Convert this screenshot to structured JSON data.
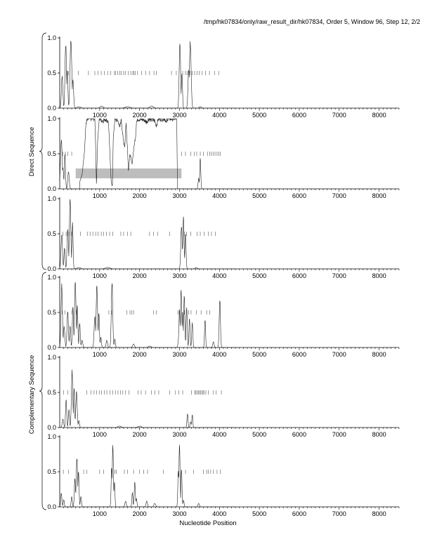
{
  "header": {
    "title": "/tmp/hk07834/only/raw_result_dir/hk07834, Order 5, Window 96, Step 12, 2/2"
  },
  "groups": {
    "direct_label": "Direct Sequence",
    "complementary_label": "Complementary Sequence"
  },
  "xlabel": "Nucleotide Position",
  "chart_data": [
    {
      "type": "line",
      "group": "direct",
      "frame": 1,
      "xlim": [
        0,
        8500
      ],
      "ylim": [
        0,
        1
      ],
      "xticks": [
        1000,
        2000,
        3000,
        4000,
        5000,
        6000,
        7000,
        8000
      ],
      "yticks": [
        "0.0",
        "0.5",
        "1.0"
      ],
      "peaks": [
        [
          60,
          0.45,
          25
        ],
        [
          150,
          0.92,
          25
        ],
        [
          190,
          0.55,
          20
        ],
        [
          280,
          0.98,
          30
        ],
        [
          330,
          0.4,
          25
        ],
        [
          480,
          0.02,
          60
        ],
        [
          1050,
          0.03,
          50
        ],
        [
          1700,
          0.02,
          80
        ],
        [
          2300,
          0.03,
          60
        ],
        [
          3010,
          0.92,
          25
        ],
        [
          3060,
          0.5,
          20
        ],
        [
          3270,
          0.93,
          30
        ],
        [
          3230,
          0.55,
          25
        ],
        [
          3520,
          0.02,
          40
        ]
      ],
      "stop_codons": [
        220,
        470,
        720,
        880,
        960,
        1040,
        1120,
        1200,
        1280,
        1370,
        1400,
        1450,
        1500,
        1540,
        1600,
        1640,
        1720,
        1780,
        1830,
        1860,
        1890,
        1950,
        2050,
        2150,
        2250,
        2360,
        2420,
        2800,
        2920,
        3080,
        3150,
        3190,
        3260,
        3320,
        3380,
        3440,
        3490,
        3560,
        3650,
        3750,
        3880,
        3980
      ],
      "shaded": null
    },
    {
      "type": "line",
      "group": "direct",
      "frame": 2,
      "xlim": [
        0,
        8500
      ],
      "ylim": [
        0,
        1
      ],
      "xticks": [
        1000,
        2000,
        3000,
        4000,
        5000,
        6000,
        7000,
        8000
      ],
      "yticks": [
        "0.0",
        "0.5",
        "1.0"
      ],
      "plateau": [
        [
          500,
          0.1
        ],
        [
          560,
          0.2
        ],
        [
          620,
          0.55
        ],
        [
          660,
          0.95
        ],
        [
          720,
          1.0
        ],
        [
          880,
          1.0
        ],
        [
          900,
          0.6
        ],
        [
          920,
          0.05
        ],
        [
          950,
          0.7
        ],
        [
          990,
          1.0
        ],
        [
          1080,
          0.97
        ],
        [
          1150,
          1.0
        ],
        [
          1220,
          0.95
        ],
        [
          1290,
          0.1
        ],
        [
          1320,
          0.03
        ],
        [
          1340,
          0.7
        ],
        [
          1380,
          1.0
        ],
        [
          1480,
          0.95
        ],
        [
          1500,
          0.85
        ],
        [
          1540,
          1.0
        ],
        [
          1590,
          0.7
        ],
        [
          1630,
          0.6
        ],
        [
          1660,
          0.95
        ],
        [
          1700,
          0.55
        ],
        [
          1720,
          0.25
        ],
        [
          1760,
          0.5
        ],
        [
          1810,
          0.35
        ],
        [
          1860,
          0.6
        ],
        [
          1900,
          0.75
        ],
        [
          1920,
          0.95
        ],
        [
          1960,
          1.0
        ],
        [
          2120,
          0.98
        ],
        [
          2170,
          0.95
        ],
        [
          2230,
          1.0
        ],
        [
          2380,
          0.97
        ],
        [
          2420,
          0.9
        ],
        [
          2470,
          1.0
        ],
        [
          2640,
          1.0
        ],
        [
          2660,
          0.93
        ],
        [
          2700,
          1.0
        ],
        [
          2930,
          1.0
        ],
        [
          2950,
          0.0
        ]
      ],
      "peaks": [
        [
          40,
          0.7,
          30
        ],
        [
          80,
          0.3,
          25
        ],
        [
          130,
          0.5,
          20
        ],
        [
          220,
          0.25,
          25
        ],
        [
          3520,
          0.45,
          18
        ],
        [
          3480,
          0.15,
          20
        ]
      ],
      "stop_codons": [
        80,
        140,
        200,
        300,
        3050,
        3150,
        3280,
        3370,
        3430,
        3520,
        3600,
        3700,
        3760,
        3800,
        3850,
        3890,
        3940,
        3980,
        4020
      ],
      "shaded": {
        "x0": 400,
        "x1": 3050,
        "y0": 0.15,
        "y1": 0.29
      }
    },
    {
      "type": "line",
      "group": "direct",
      "frame": 3,
      "xlim": [
        0,
        8500
      ],
      "ylim": [
        0,
        1
      ],
      "xticks": [
        1000,
        2000,
        3000,
        4000,
        5000,
        6000,
        7000,
        8000
      ],
      "yticks": [
        "0.0",
        "0.5",
        "1.0"
      ],
      "peaks": [
        [
          50,
          0.5,
          25
        ],
        [
          120,
          0.3,
          20
        ],
        [
          200,
          0.55,
          25
        ],
        [
          260,
          0.98,
          25
        ],
        [
          320,
          0.65,
          20
        ],
        [
          480,
          0.02,
          60
        ],
        [
          1200,
          0.02,
          80
        ],
        [
          3050,
          0.6,
          25
        ],
        [
          3100,
          0.75,
          20
        ],
        [
          3150,
          0.5,
          20
        ],
        [
          3080,
          0.3,
          30
        ],
        [
          3420,
          0.02,
          40
        ]
      ],
      "stop_codons": [
        80,
        160,
        230,
        300,
        520,
        690,
        760,
        830,
        900,
        960,
        1040,
        1100,
        1170,
        1250,
        1330,
        1530,
        1600,
        1700,
        1780,
        2250,
        2350,
        2450,
        2750,
        3040,
        3120,
        3180,
        3280,
        3440,
        3520,
        3620,
        3720,
        3800,
        3900
      ],
      "shaded": null
    },
    {
      "type": "line",
      "group": "complementary",
      "frame": 1,
      "xlim": [
        0,
        8500
      ],
      "ylim": [
        0,
        1
      ],
      "xticks": [
        1000,
        2000,
        3000,
        4000,
        5000,
        6000,
        7000,
        8000
      ],
      "yticks": [
        "0.0",
        "0.5",
        "1.0"
      ],
      "peaks": [
        [
          50,
          0.88,
          25
        ],
        [
          110,
          0.3,
          25
        ],
        [
          200,
          0.5,
          25
        ],
        [
          260,
          0.3,
          20
        ],
        [
          330,
          0.6,
          20
        ],
        [
          390,
          0.93,
          25
        ],
        [
          440,
          0.6,
          20
        ],
        [
          500,
          0.35,
          20
        ],
        [
          560,
          0.1,
          25
        ],
        [
          880,
          0.45,
          25
        ],
        [
          930,
          0.88,
          25
        ],
        [
          980,
          0.5,
          20
        ],
        [
          1030,
          0.15,
          20
        ],
        [
          1180,
          0.1,
          25
        ],
        [
          1310,
          0.93,
          25
        ],
        [
          1380,
          0.12,
          20
        ],
        [
          1850,
          0.05,
          30
        ],
        [
          2250,
          0.02,
          50
        ],
        [
          3000,
          0.55,
          20
        ],
        [
          3040,
          0.85,
          20
        ],
        [
          3080,
          0.5,
          20
        ],
        [
          3120,
          0.75,
          20
        ],
        [
          3180,
          0.55,
          20
        ],
        [
          3250,
          0.4,
          20
        ],
        [
          3320,
          0.35,
          20
        ],
        [
          3640,
          0.4,
          18
        ],
        [
          3850,
          0.08,
          25
        ],
        [
          4010,
          0.68,
          22
        ],
        [
          3000,
          0.3,
          30
        ]
      ],
      "stop_codons": [
        60,
        130,
        300,
        420,
        1230,
        1300,
        1680,
        1760,
        1800,
        1850,
        2350,
        2420,
        2960,
        3120,
        3230,
        3290,
        3420,
        3540,
        3680,
        3760
      ],
      "shaded": null
    },
    {
      "type": "line",
      "group": "complementary",
      "frame": 2,
      "xlim": [
        0,
        8500
      ],
      "ylim": [
        0,
        1
      ],
      "xticks": [
        1000,
        2000,
        3000,
        4000,
        5000,
        6000,
        7000,
        8000
      ],
      "yticks": [
        "0.0",
        "0.5",
        "1.0"
      ],
      "peaks": [
        [
          80,
          0.12,
          25
        ],
        [
          160,
          0.4,
          20
        ],
        [
          230,
          0.25,
          20
        ],
        [
          310,
          0.8,
          25
        ],
        [
          360,
          0.55,
          20
        ],
        [
          420,
          0.5,
          25
        ],
        [
          480,
          0.1,
          20
        ],
        [
          1500,
          0.02,
          60
        ],
        [
          2000,
          0.02,
          60
        ],
        [
          3200,
          0.2,
          18
        ],
        [
          3320,
          0.18,
          18
        ],
        [
          3280,
          0.08,
          20
        ]
      ],
      "stop_codons": [
        100,
        200,
        680,
        780,
        860,
        920,
        990,
        1050,
        1120,
        1180,
        1260,
        1330,
        1400,
        1460,
        1520,
        1580,
        1650,
        1730,
        1960,
        2040,
        2150,
        2300,
        2380,
        2480,
        2750,
        2900,
        2980,
        3080,
        3300,
        3380,
        3410,
        3440,
        3470,
        3500,
        3530,
        3560,
        3590,
        3620,
        3660,
        3720,
        3850,
        3920,
        4050
      ],
      "shaded": null
    },
    {
      "type": "line",
      "group": "complementary",
      "frame": 3,
      "xlim": [
        0,
        8500
      ],
      "ylim": [
        0,
        1
      ],
      "xticks": [
        1000,
        2000,
        3000,
        4000,
        5000,
        6000,
        7000,
        8000
      ],
      "yticks": [
        "0.0",
        "0.5",
        "1.0"
      ],
      "peaks": [
        [
          40,
          0.2,
          20
        ],
        [
          100,
          0.1,
          20
        ],
        [
          300,
          0.15,
          20
        ],
        [
          380,
          0.4,
          20
        ],
        [
          430,
          0.68,
          25
        ],
        [
          470,
          0.5,
          20
        ],
        [
          530,
          0.15,
          20
        ],
        [
          1300,
          0.55,
          18
        ],
        [
          1330,
          0.88,
          20
        ],
        [
          1370,
          0.35,
          18
        ],
        [
          1650,
          0.08,
          25
        ],
        [
          1820,
          0.2,
          18
        ],
        [
          1880,
          0.35,
          20
        ],
        [
          1920,
          0.12,
          20
        ],
        [
          2180,
          0.08,
          25
        ],
        [
          2380,
          0.05,
          30
        ],
        [
          2970,
          0.5,
          18
        ],
        [
          3000,
          0.88,
          20
        ],
        [
          3050,
          0.55,
          18
        ],
        [
          3100,
          0.1,
          20
        ],
        [
          3480,
          0.05,
          25
        ]
      ],
      "stop_codons": [
        90,
        220,
        600,
        680,
        1000,
        1100,
        1380,
        1420,
        1620,
        1700,
        1850,
        2000,
        2100,
        2200,
        2600,
        3150,
        3350,
        3600,
        3680,
        3720,
        3780,
        3850,
        3940,
        4020
      ],
      "shaded": null
    }
  ]
}
